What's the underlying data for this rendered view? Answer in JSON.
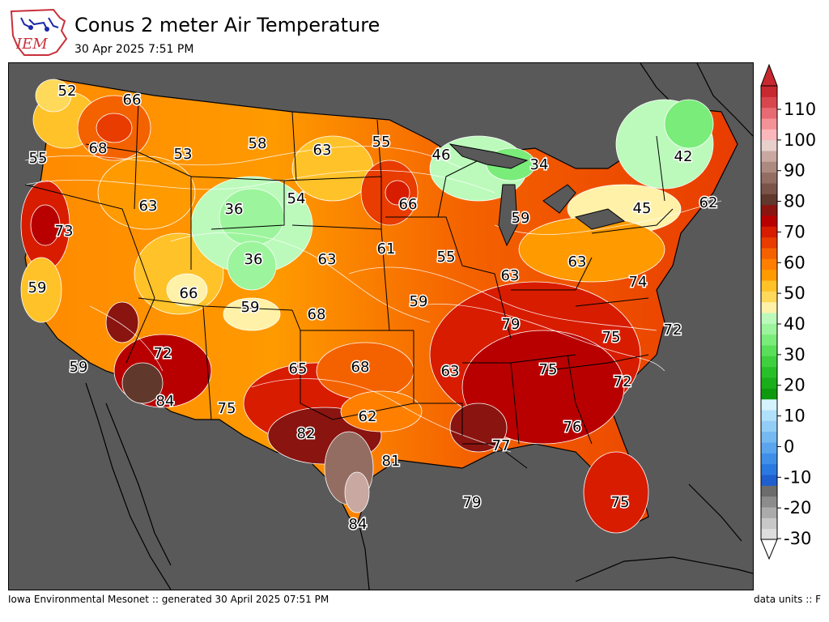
{
  "header": {
    "logo_text": "IEM",
    "title": "Conus 2 meter Air Temperature",
    "subtitle": "30 Apr 2025 7:51 PM"
  },
  "footer": {
    "left": "Iowa Environmental Mesonet :: generated 30 April 2025 07:51 PM",
    "right": "data units :: F"
  },
  "colors": {
    "ocean": "#595959",
    "state_lines": "#000000",
    "contours": "#ffffff"
  },
  "map_labels": [
    {
      "value": "52"
    },
    {
      "value": "66"
    },
    {
      "value": "55"
    },
    {
      "value": "68"
    },
    {
      "value": "53"
    },
    {
      "value": "58"
    },
    {
      "value": "63"
    },
    {
      "value": "55"
    },
    {
      "value": "46"
    },
    {
      "value": "34"
    },
    {
      "value": "42"
    },
    {
      "value": "36"
    },
    {
      "value": "54"
    },
    {
      "value": "63"
    },
    {
      "value": "66"
    },
    {
      "value": "62"
    },
    {
      "value": "45"
    },
    {
      "value": "73"
    },
    {
      "value": "59"
    },
    {
      "value": "36"
    },
    {
      "value": "63"
    },
    {
      "value": "61"
    },
    {
      "value": "55"
    },
    {
      "value": "63"
    },
    {
      "value": "63"
    },
    {
      "value": "59"
    },
    {
      "value": "66"
    },
    {
      "value": "74"
    },
    {
      "value": "59"
    },
    {
      "value": "68"
    },
    {
      "value": "59"
    },
    {
      "value": "79"
    },
    {
      "value": "72"
    },
    {
      "value": "75"
    },
    {
      "value": "59"
    },
    {
      "value": "72"
    },
    {
      "value": "65"
    },
    {
      "value": "68"
    },
    {
      "value": "63"
    },
    {
      "value": "75"
    },
    {
      "value": "72"
    },
    {
      "value": "84"
    },
    {
      "value": "75"
    },
    {
      "value": "62"
    },
    {
      "value": "76"
    },
    {
      "value": "82"
    },
    {
      "value": "77"
    },
    {
      "value": "81"
    },
    {
      "value": "79"
    },
    {
      "value": "75"
    },
    {
      "value": "84"
    }
  ],
  "colorbar": {
    "units": "F",
    "ticks": [
      "110",
      "100",
      "90",
      "80",
      "70",
      "60",
      "50",
      "40",
      "30",
      "20",
      "10",
      "0",
      "-10",
      "-20",
      "-30"
    ],
    "bands": [
      "#dedede",
      "#c8c8c8",
      "#ababab",
      "#8c8c8c",
      "#6c6c6c",
      "#1f5fcf",
      "#2a79e0",
      "#3f8fe8",
      "#5aa5ee",
      "#75b9f2",
      "#92cdf6",
      "#b0e0fa",
      "#d4f3fd",
      "#0e9a0e",
      "#1aae1a",
      "#28c028",
      "#3fd03f",
      "#5adf5a",
      "#7aec7a",
      "#9cf59c",
      "#bcfabc",
      "#fff1a8",
      "#ffd95a",
      "#ffc229",
      "#ff9a00",
      "#ff7f00",
      "#f46200",
      "#e83c00",
      "#d81c00",
      "#b80000",
      "#8a1410",
      "#60382c",
      "#7a5448",
      "#946d62",
      "#ad8a80",
      "#c8a8a0",
      "#e8d0cc",
      "#fbb8bc",
      "#f49298",
      "#e86a72",
      "#d8464e",
      "#c8282f"
    ]
  }
}
